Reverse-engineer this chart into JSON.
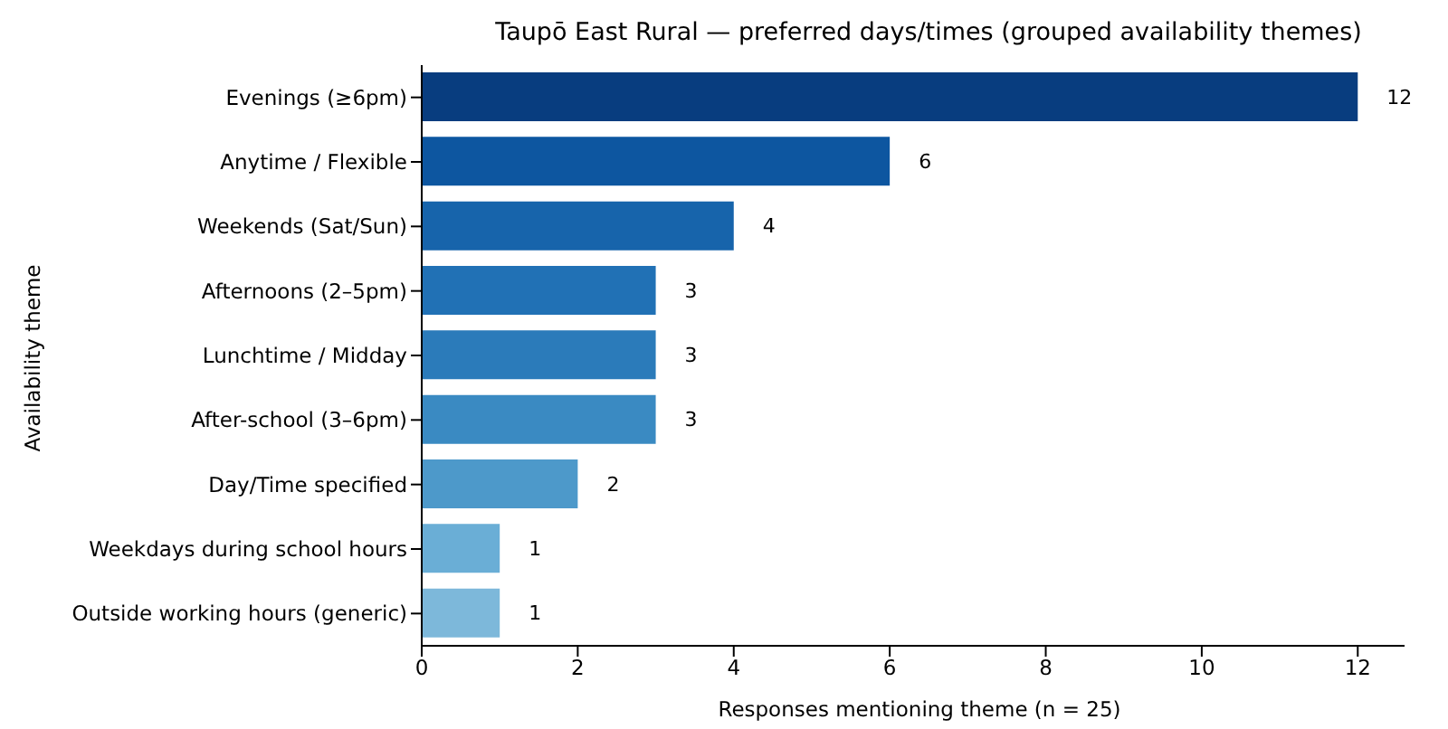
{
  "chart_data": {
    "type": "bar",
    "orientation": "horizontal",
    "title": "Taupō East Rural — preferred days/times (grouped availability themes)",
    "xlabel": "Responses mentioning theme (n = 25)",
    "ylabel": "Availability theme",
    "categories": [
      "Evenings (≥6pm)",
      "Anytime / Flexible",
      "Weekends (Sat/Sun)",
      "Afternoons (2–5pm)",
      "Lunchtime / Midday",
      "After-school (3–6pm)",
      "Day/Time specified",
      "Weekdays during school hours",
      "Outside working hours (generic)"
    ],
    "values": [
      12,
      6,
      4,
      3,
      3,
      3,
      2,
      1,
      1
    ],
    "colors": [
      "#083d7f",
      "#0d56a0",
      "#1764ab",
      "#2171b5",
      "#2b7bba",
      "#3a8ac2",
      "#4d99ca",
      "#6aaed6",
      "#7db8da"
    ],
    "xlim": [
      0,
      12.6
    ],
    "xticks": [
      0,
      2,
      4,
      6,
      8,
      10,
      12
    ],
    "data_labels": true,
    "grid": false,
    "legend": false
  }
}
